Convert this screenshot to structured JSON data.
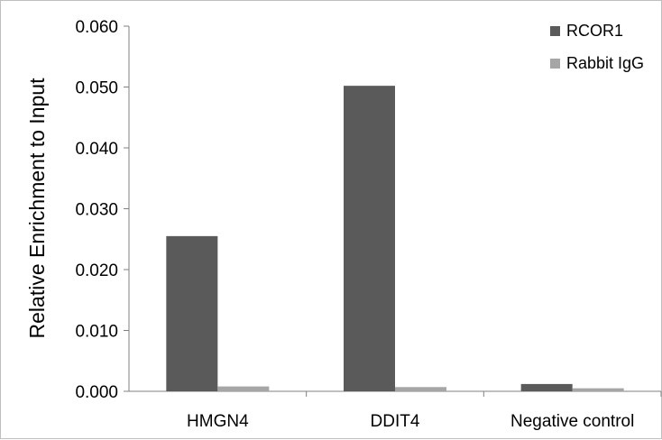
{
  "chart_data": {
    "type": "bar",
    "title": "",
    "xlabel": "",
    "ylabel": "Relative Enrichment to Input",
    "ylim": [
      0,
      0.06
    ],
    "yticks": [
      0.0,
      0.01,
      0.02,
      0.03,
      0.04,
      0.05,
      0.06
    ],
    "ytick_labels": [
      "0.000",
      "0.010",
      "0.020",
      "0.030",
      "0.040",
      "0.050",
      "0.060"
    ],
    "categories": [
      "HMGN4",
      "DDIT4",
      "Negative control"
    ],
    "series": [
      {
        "name": "RCOR1",
        "values": [
          0.0255,
          0.0502,
          0.0012
        ],
        "color": "#5a5a5a"
      },
      {
        "name": "Rabbit IgG",
        "values": [
          0.0008,
          0.0007,
          0.0005
        ],
        "color": "#a6a6a6"
      }
    ],
    "grid": false,
    "legend": "top-right"
  }
}
